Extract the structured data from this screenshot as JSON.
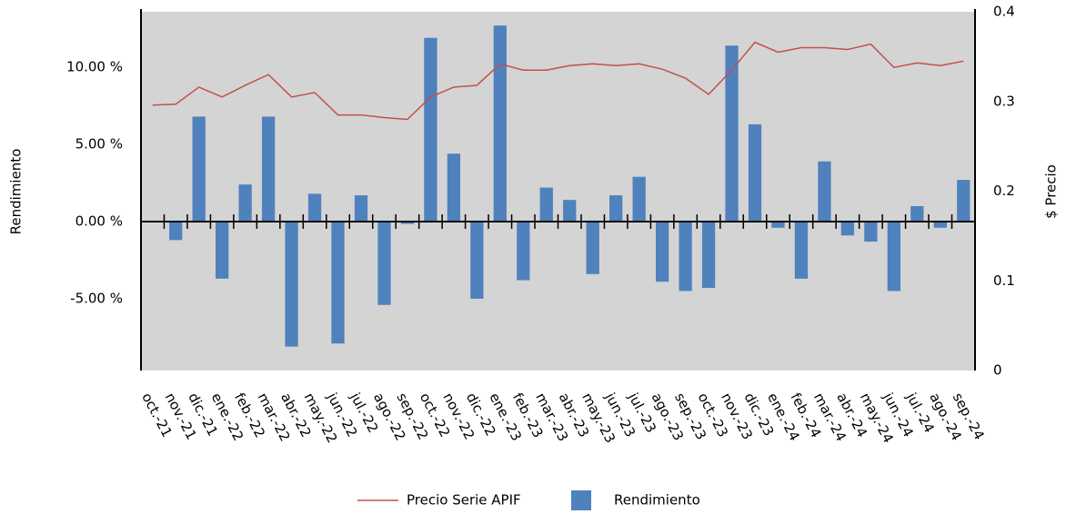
{
  "chart_data": {
    "type": "bar_line",
    "categories": [
      "oct.-21",
      "nov.-21",
      "dic.-21",
      "ene.-22",
      "feb.-22",
      "mar.-22",
      "abr.-22",
      "may.-22",
      "jun.-22",
      "jul.-22",
      "ago.-22",
      "sep.-22",
      "oct.-22",
      "nov.-22",
      "dic.-22",
      "ene.-23",
      "feb.-23",
      "mar.-23",
      "abr.-23",
      "may.-23",
      "jun.-23",
      "jul.-23",
      "ago.-23",
      "sep.-23",
      "oct.-23",
      "nov.-23",
      "dic.-23",
      "ene.-24",
      "feb.-24",
      "mar.-24",
      "abr.-24",
      "may.-24",
      "jun.-24",
      "jul.-24",
      "ago.-24",
      "sep.-24"
    ],
    "series": [
      {
        "name": "Rendimiento",
        "type": "bar",
        "axis": "y",
        "color": "#4f81bd",
        "values": [
          0,
          -1.2,
          6.8,
          -3.7,
          2.4,
          6.8,
          -8.1,
          1.8,
          -7.9,
          1.7,
          -5.4,
          -0.15,
          11.9,
          4.4,
          -5.0,
          12.7,
          -3.8,
          2.2,
          1.4,
          -3.4,
          1.7,
          2.9,
          -3.9,
          -4.5,
          -4.3,
          11.4,
          6.3,
          -0.4,
          -3.7,
          3.9,
          -0.9,
          -1.3,
          -4.5,
          1.0,
          -0.4,
          2.7
        ]
      },
      {
        "name": "Precio Serie APIF",
        "type": "line",
        "axis": "y2",
        "color": "#c0504d",
        "values": [
          0.296,
          0.297,
          0.316,
          0.305,
          0.318,
          0.33,
          0.305,
          0.31,
          0.285,
          0.285,
          0.282,
          0.28,
          0.305,
          0.316,
          0.318,
          0.342,
          0.335,
          0.335,
          0.34,
          0.342,
          0.34,
          0.342,
          0.336,
          0.326,
          0.308,
          0.335,
          0.366,
          0.355,
          0.36,
          0.36,
          0.358,
          0.364,
          0.338,
          0.343,
          0.34,
          0.345
        ]
      }
    ],
    "y_label": "Rendimiento",
    "y2_label": "$ Precio",
    "ylim": [
      -9.65,
      13.59
    ],
    "yticks": [
      {
        "value": -5,
        "label": "-5.00 %"
      },
      {
        "value": 0,
        "label": "0.00 %"
      },
      {
        "value": 5,
        "label": "5.00 %"
      },
      {
        "value": 10,
        "label": "10.00 %"
      }
    ],
    "y2lim": [
      0,
      0.4
    ],
    "y2ticks": [
      0,
      0.1,
      0.2,
      0.3,
      0.4
    ],
    "legend": "bottom",
    "background": "#d4d4d4"
  }
}
